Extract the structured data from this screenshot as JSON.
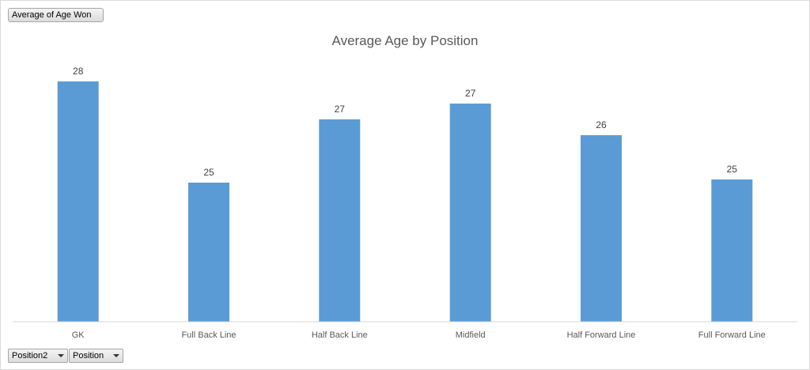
{
  "value_field_button": {
    "label": "Average of Age Won"
  },
  "axis_field_buttons": [
    {
      "label": "Position2"
    },
    {
      "label": "Position"
    }
  ],
  "chart_data": {
    "type": "bar",
    "title": "Average Age by Position",
    "categories": [
      "GK",
      "Full Back Line",
      "Half Back Line",
      "Midfield",
      "Half Forward Line",
      "Full Forward Line"
    ],
    "series": [
      {
        "values": [
          28.1,
          24.9,
          26.9,
          27.4,
          26.4,
          25.0
        ],
        "labels": [
          "28",
          "25",
          "27",
          "27",
          "26",
          "25"
        ]
      }
    ],
    "bar_color": "#5b9bd5",
    "ylim": [
      20.5,
      29.5
    ],
    "grid": false,
    "legend": "none"
  }
}
